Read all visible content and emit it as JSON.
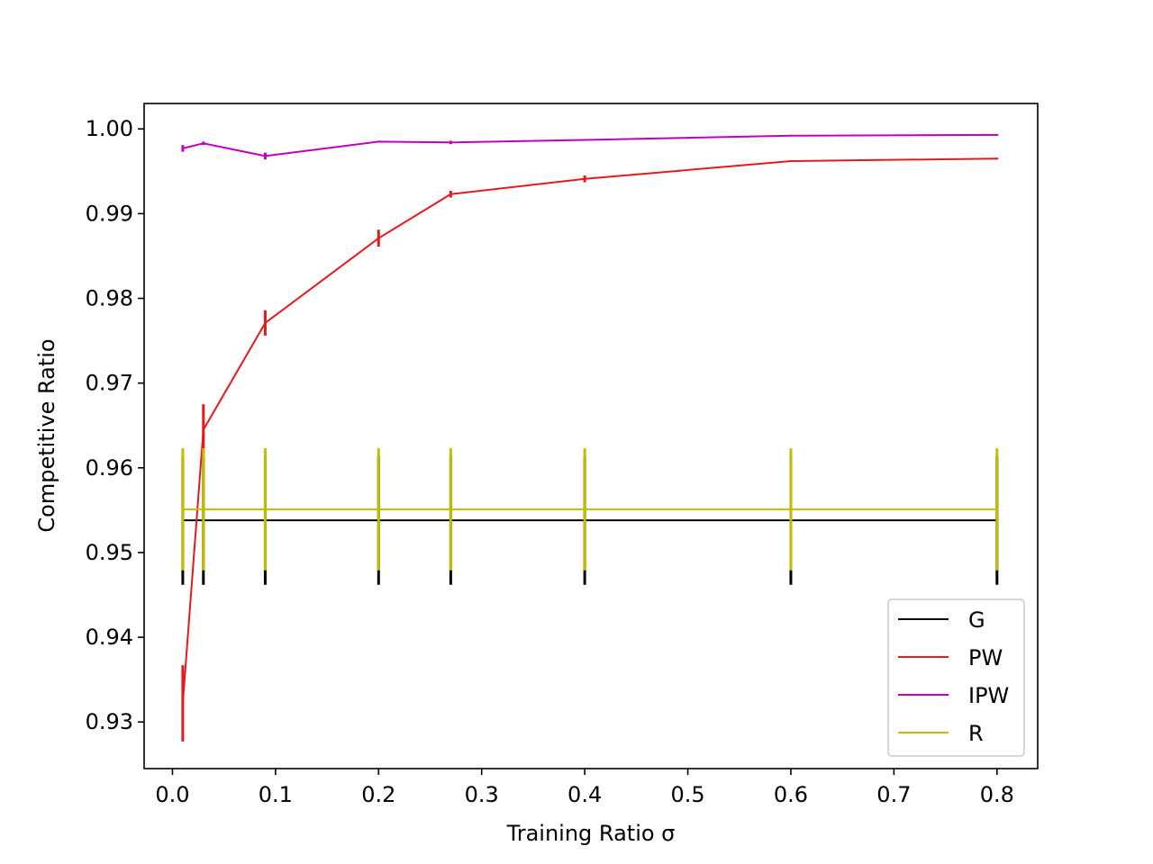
{
  "chart_data": {
    "type": "line",
    "title": "",
    "xlabel": "Training Ratio σ",
    "ylabel": "Competitive Ratio",
    "xlim": [
      -0.0275,
      0.8395
    ],
    "ylim": [
      0.9245,
      1.003
    ],
    "xticks": [
      0.0,
      0.1,
      0.2,
      0.3,
      0.4,
      0.5,
      0.6,
      0.7,
      0.8
    ],
    "xtick_labels": [
      "0.0",
      "0.1",
      "0.2",
      "0.3",
      "0.4",
      "0.5",
      "0.6",
      "0.7",
      "0.8"
    ],
    "yticks": [
      0.93,
      0.94,
      0.95,
      0.96,
      0.97,
      0.98,
      0.99,
      1.0
    ],
    "ytick_labels": [
      "0.93",
      "0.94",
      "0.95",
      "0.96",
      "0.97",
      "0.98",
      "0.99",
      "1.00"
    ],
    "grid": false,
    "legend_position": "lower-right",
    "x": [
      0.01,
      0.03,
      0.09,
      0.2,
      0.27,
      0.4,
      0.6,
      0.8
    ],
    "series": [
      {
        "name": "G",
        "color": "#000000",
        "values": [
          0.9538,
          0.9538,
          0.9538,
          0.9538,
          0.9538,
          0.9538,
          0.9538,
          0.9538
        ],
        "errors": [
          0.0076,
          0.0076,
          0.0076,
          0.0076,
          0.0076,
          0.0076,
          0.0076,
          0.0076
        ]
      },
      {
        "name": "PW",
        "color": "#e41a1c",
        "values": [
          0.9322,
          0.9645,
          0.9771,
          0.9871,
          0.9923,
          0.9941,
          0.9962,
          0.9965
        ],
        "errors": [
          0.0045,
          0.003,
          0.0015,
          0.001,
          0.0004,
          0.0004,
          0.0001,
          0.0001
        ]
      },
      {
        "name": "IPW",
        "color": "#bf00bf",
        "values": [
          0.9977,
          0.9983,
          0.9968,
          0.9985,
          0.9984,
          0.9987,
          0.9992,
          0.9993
        ],
        "errors": [
          0.0004,
          0.0002,
          0.0004,
          0.0001,
          0.0002,
          0.0001,
          0.0001,
          0.0001
        ]
      },
      {
        "name": "R",
        "color": "#bfbf00",
        "values": [
          0.9551,
          0.9551,
          0.9551,
          0.9551,
          0.9551,
          0.9551,
          0.9551,
          0.9551
        ],
        "errors": [
          0.0072,
          0.0072,
          0.0072,
          0.0072,
          0.0072,
          0.0072,
          0.0072,
          0.0072
        ]
      }
    ]
  }
}
